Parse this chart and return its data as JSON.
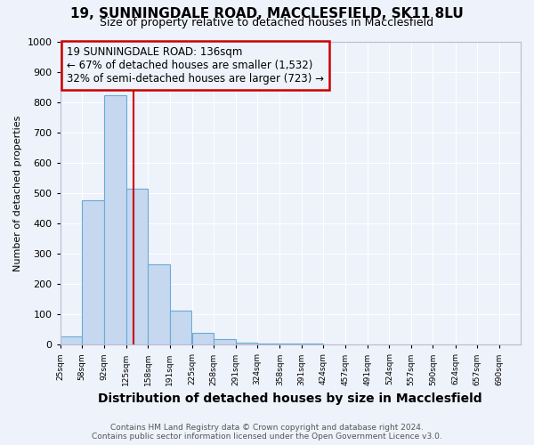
{
  "title1": "19, SUNNINGDALE ROAD, MACCLESFIELD, SK11 8LU",
  "title2": "Size of property relative to detached houses in Macclesfield",
  "xlabel": "Distribution of detached houses by size in Macclesfield",
  "ylabel": "Number of detached properties",
  "footer1": "Contains HM Land Registry data © Crown copyright and database right 2024.",
  "footer2": "Contains public sector information licensed under the Open Government Licence v3.0.",
  "bin_edges": [
    25,
    58,
    92,
    125,
    158,
    191,
    225,
    258,
    291,
    324,
    358,
    391,
    424,
    457,
    491,
    524,
    557,
    590,
    624,
    657,
    690
  ],
  "bar_heights": [
    28,
    477,
    822,
    513,
    265,
    112,
    38,
    18,
    8,
    4,
    4,
    4,
    0,
    0,
    0,
    0,
    0,
    0,
    0,
    0
  ],
  "bar_color": "#c5d8f0",
  "bar_edge_color": "#6aaad4",
  "property_size": 136,
  "property_label": "19 SUNNINGDALE ROAD: 136sqm",
  "annotation_line1": "← 67% of detached houses are smaller (1,532)",
  "annotation_line2": "32% of semi-detached houses are larger (723) →",
  "red_line_color": "#cc0000",
  "annotation_box_color": "#cc0000",
  "ylim": [
    0,
    1000
  ],
  "yticks": [
    0,
    100,
    200,
    300,
    400,
    500,
    600,
    700,
    800,
    900,
    1000
  ],
  "background_color": "#eef2fb",
  "grid_color": "#ffffff",
  "title1_fontsize": 11,
  "title2_fontsize": 9,
  "xlabel_fontsize": 10,
  "ylabel_fontsize": 8,
  "annotation_fontsize": 8.5,
  "footer_fontsize": 6.5
}
